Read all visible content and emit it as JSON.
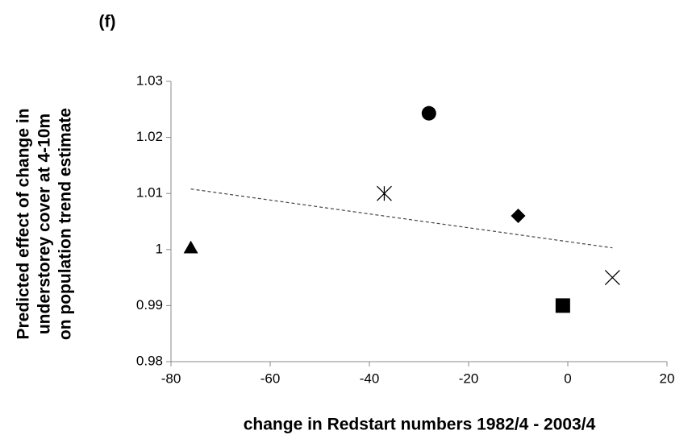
{
  "chart_data": {
    "type": "scatter",
    "title": "(f)",
    "ylabel": [
      "Predicted effect of change in",
      "understorey cover at 4-10m",
      "on population trend estimate"
    ],
    "xlabel": "change in Redstart numbers 1982/4 - 2003/4",
    "series": [
      {
        "color": "#000000",
        "x": [
          -76,
          -37,
          -28,
          -10,
          -1,
          9
        ],
        "values": [
          1.0003,
          1.01,
          1.0243,
          1.006,
          0.99,
          0.995
        ],
        "markers": [
          "triangle",
          "asterisk",
          "circle",
          "diamond",
          "square",
          "cross"
        ]
      }
    ],
    "trendline": {
      "style": "dashed",
      "color": "#444444",
      "x": [
        -76,
        9
      ],
      "values": [
        1.0108,
        1.0003
      ]
    },
    "xlim": [
      -80,
      20
    ],
    "xticks": [
      -80,
      -60,
      -40,
      -20,
      0,
      20
    ],
    "ylim": [
      0.98,
      1.03
    ],
    "yticks": [
      0.98,
      0.99,
      1,
      1.01,
      1.02,
      1.03
    ],
    "grid": false
  }
}
